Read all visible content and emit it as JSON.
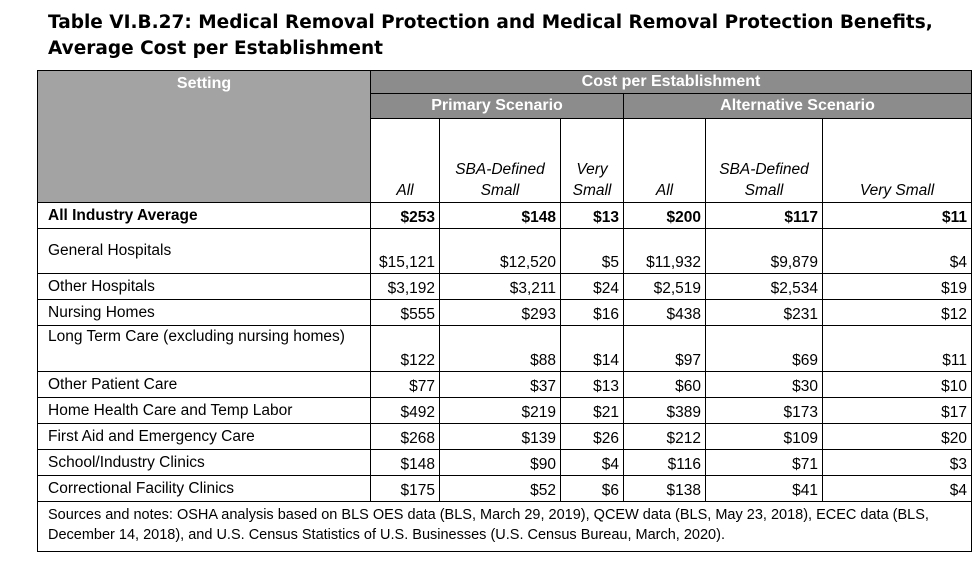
{
  "title": {
    "line1": "Table VI.B.27: Medical Removal Protection and Medical Removal Protection Benefits,",
    "line2": "Average Cost per Establishment"
  },
  "header": {
    "setting": "Setting",
    "cost_per_establishment": "Cost per Establishment",
    "primary_scenario": "Primary Scenario",
    "alternative_scenario": "Alternative Scenario",
    "primary_cols": [
      "All",
      "SBA-Defined Small",
      "Very Small"
    ],
    "alternative_cols": [
      "All",
      "SBA-Defined Small",
      "Very Small"
    ]
  },
  "rows": [
    {
      "setting": "All Industry Average",
      "p_all": "$253",
      "p_sba": "$148",
      "p_vs": "$13",
      "a_all": "$200",
      "a_sba": "$117",
      "a_vs": "$11"
    },
    {
      "setting": "General Hospitals",
      "p_all": "$15,121",
      "p_sba": "$12,520",
      "p_vs": "$5",
      "a_all": "$11,932",
      "a_sba": "$9,879",
      "a_vs": "$4"
    },
    {
      "setting": "Other Hospitals",
      "p_all": "$3,192",
      "p_sba": "$3,211",
      "p_vs": "$24",
      "a_all": "$2,519",
      "a_sba": "$2,534",
      "a_vs": "$19"
    },
    {
      "setting": "Nursing Homes",
      "p_all": "$555",
      "p_sba": "$293",
      "p_vs": "$16",
      "a_all": "$438",
      "a_sba": "$231",
      "a_vs": "$12"
    },
    {
      "setting": "Long Term Care (excluding nursing homes)",
      "p_all": "$122",
      "p_sba": "$88",
      "p_vs": "$14",
      "a_all": "$97",
      "a_sba": "$69",
      "a_vs": "$11"
    },
    {
      "setting": "Other Patient Care",
      "p_all": "$77",
      "p_sba": "$37",
      "p_vs": "$13",
      "a_all": "$60",
      "a_sba": "$30",
      "a_vs": "$10"
    },
    {
      "setting": "Home Health Care and Temp Labor",
      "p_all": "$492",
      "p_sba": "$219",
      "p_vs": "$21",
      "a_all": "$389",
      "a_sba": "$173",
      "a_vs": "$17"
    },
    {
      "setting": "First Aid and Emergency Care",
      "p_all": "$268",
      "p_sba": "$139",
      "p_vs": "$26",
      "a_all": "$212",
      "a_sba": "$109",
      "a_vs": "$20"
    },
    {
      "setting": "School/Industry Clinics",
      "p_all": "$148",
      "p_sba": "$90",
      "p_vs": "$4",
      "a_all": "$116",
      "a_sba": "$71",
      "a_vs": "$3"
    },
    {
      "setting": "Correctional Facility Clinics",
      "p_all": "$175",
      "p_sba": "$52",
      "p_vs": "$6",
      "a_all": "$138",
      "a_sba": "$41",
      "a_vs": "$4"
    }
  ],
  "notes": "Sources and notes: OSHA analysis based on BLS OES data (BLS, March 29, 2019), QCEW data (BLS, May 23, 2018), ECEC data (BLS, December 14, 2018), and U.S. Census Statistics of U.S. Businesses (U.S. Census Bureau, March, 2020)."
}
